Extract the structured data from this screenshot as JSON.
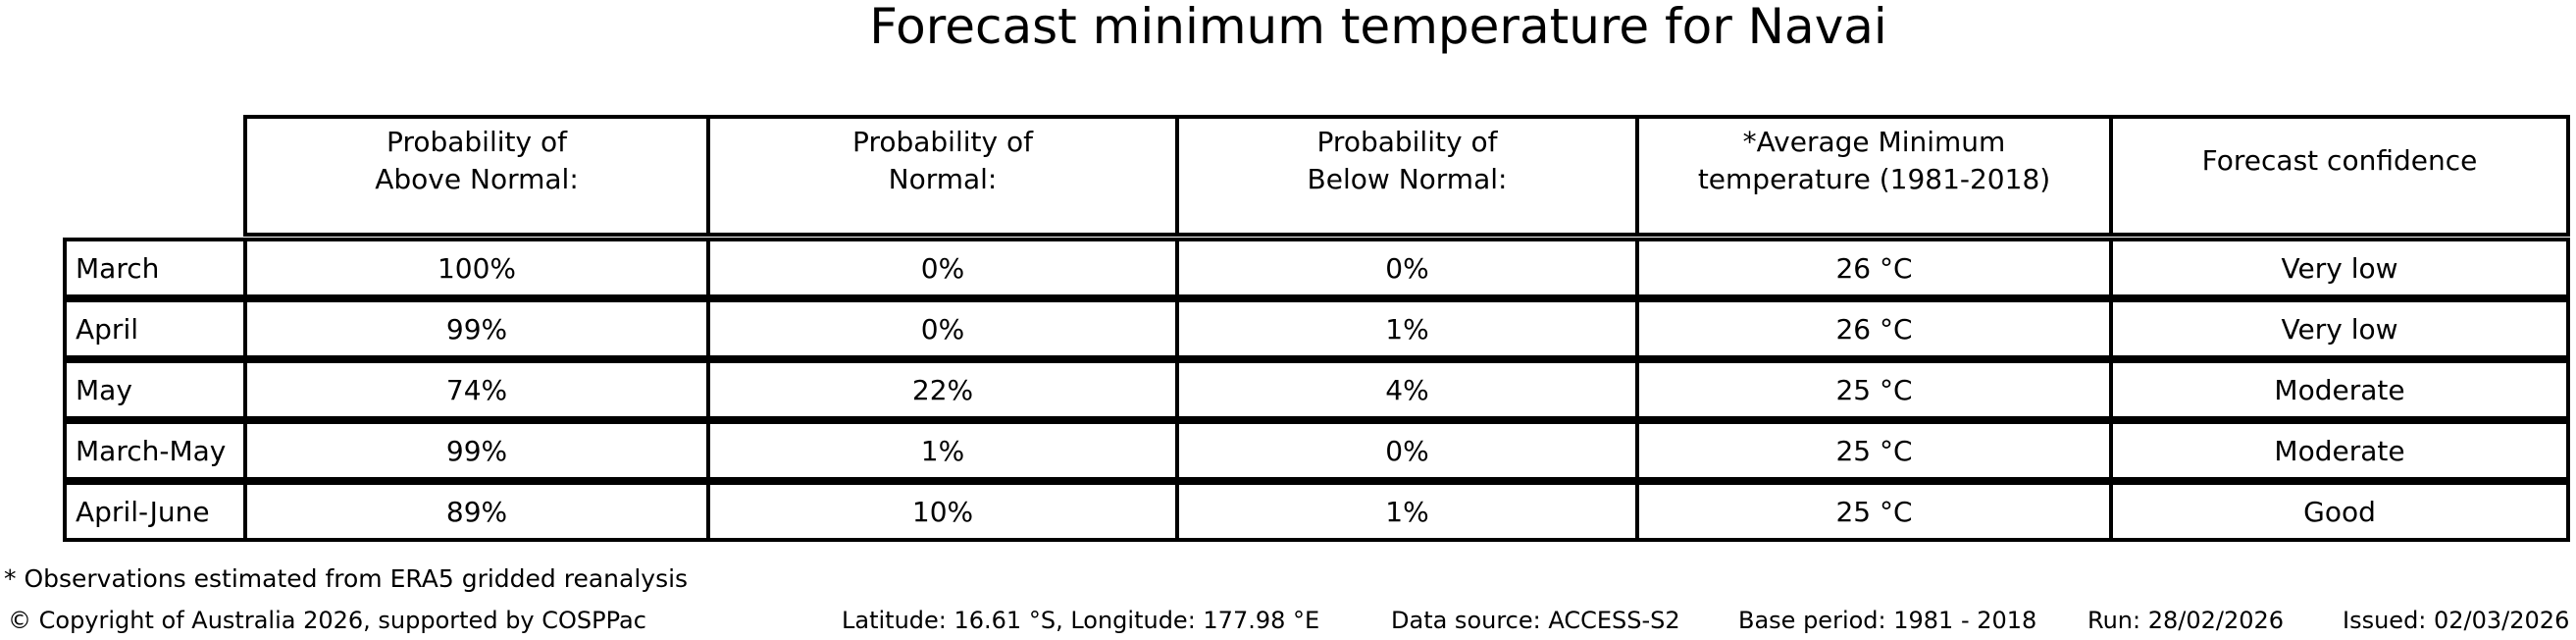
{
  "colors": {
    "background": "#ffffff",
    "text": "#000000",
    "table_border": "#000000"
  },
  "chart_data": {
    "type": "table",
    "title": "Forecast minimum temperature for Navai",
    "columns": [
      "Probability of\nAbove Normal:",
      "Probability of\nNormal:",
      "Probability of\nBelow Normal:",
      "*Average Minimum\ntemperature (1981-2018)",
      "Forecast confidence"
    ],
    "row_labels": [
      "March",
      "April",
      "May",
      "March-May",
      "April-June"
    ],
    "rows": [
      [
        "100%",
        "0%",
        "0%",
        "26 °C",
        "Very low"
      ],
      [
        "99%",
        "0%",
        "1%",
        "26 °C",
        "Very low"
      ],
      [
        "74%",
        "22%",
        "4%",
        "25 °C",
        "Moderate"
      ],
      [
        "99%",
        "1%",
        "0%",
        "25 °C",
        "Moderate"
      ],
      [
        "89%",
        "10%",
        "1%",
        "25 °C",
        "Good"
      ]
    ]
  },
  "footnote": "* Observations estimated from ERA5 gridded reanalysis",
  "footer": {
    "copyright": "© Copyright of Australia 2026, supported by COSPPac",
    "location": "Latitude: 16.61 °S, Longitude: 177.98 °E",
    "data_source": "Data source: ACCESS-S2",
    "base_period": "Base period: 1981 - 2018",
    "run": "Run: 28/02/2026",
    "issued": "Issued: 02/03/2026"
  }
}
